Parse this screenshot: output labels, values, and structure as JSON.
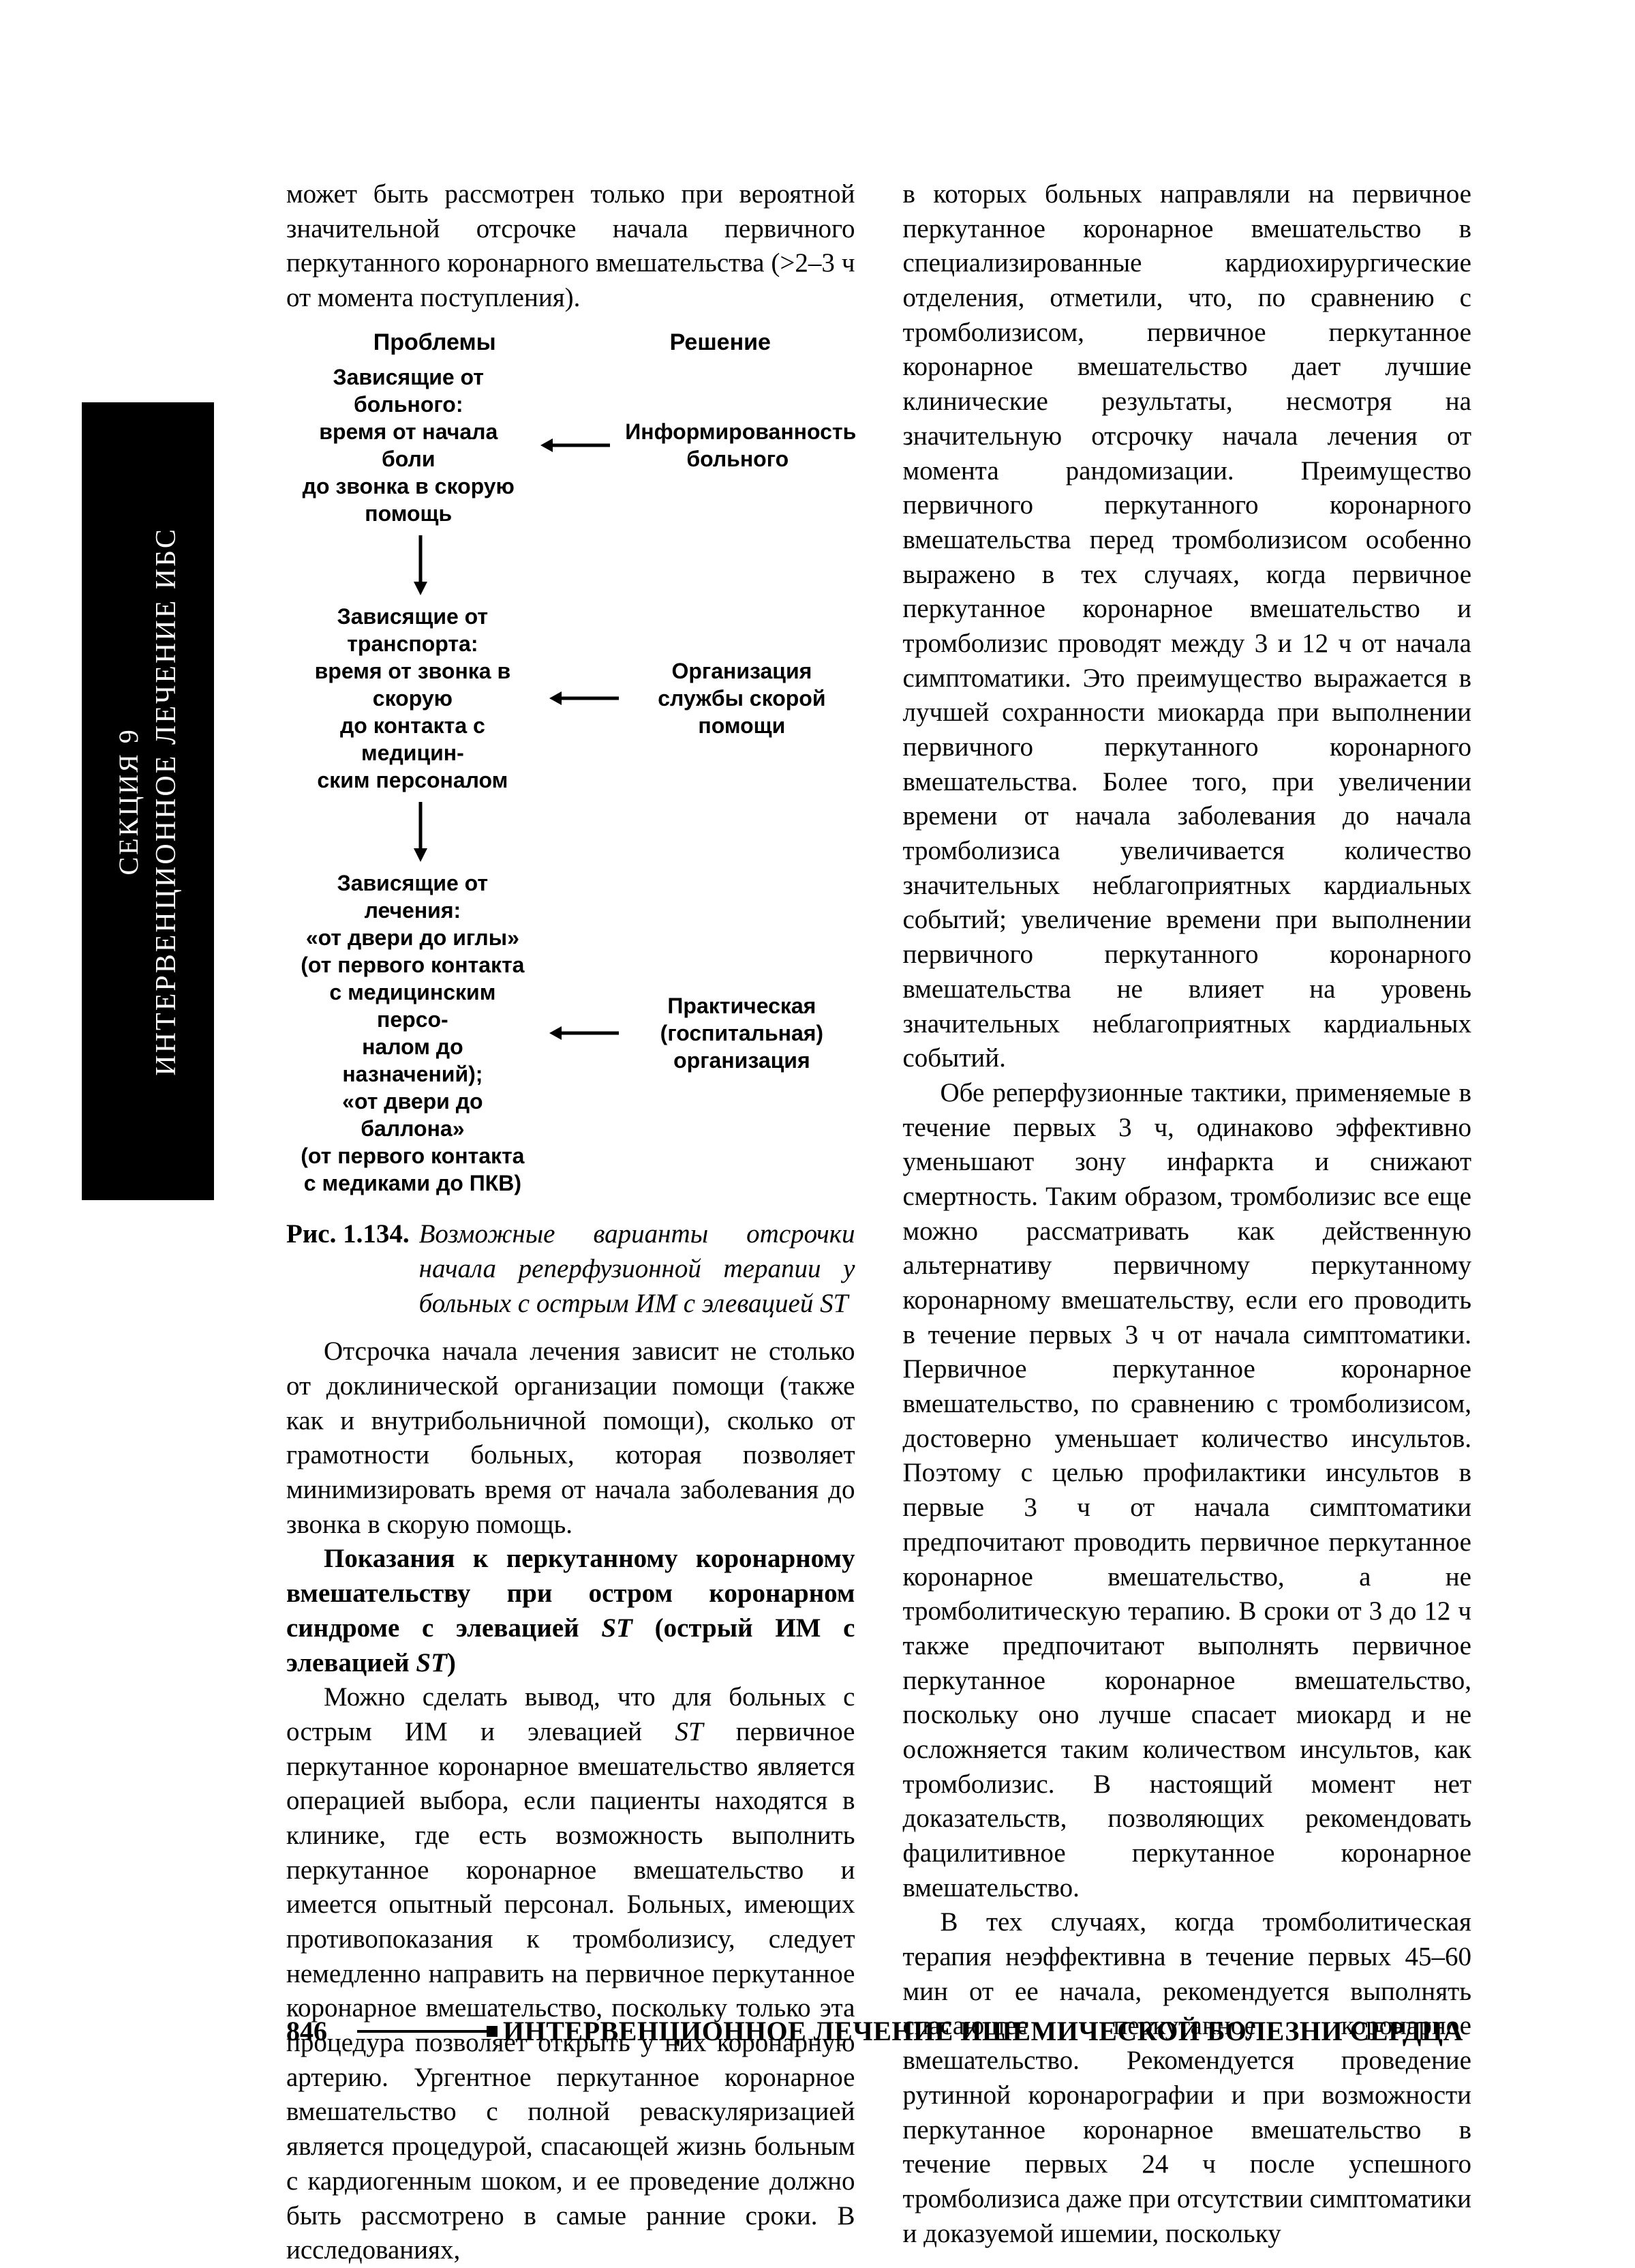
{
  "sideTab": {
    "line1": "СЕКЦИЯ 9",
    "line2": "ИНТЕРВЕНЦИОННОЕ ЛЕЧЕНИЕ ИБС",
    "bg": "#000000",
    "fg": "#ffffff"
  },
  "colors": {
    "pageBg": "#ffffff",
    "text": "#000000",
    "arrow": "#000000"
  },
  "body": {
    "leadNoIndent": "может быть рассмотрен только при вероятной значительной отсрочке начала первичного перкутанного коронарного вмешательства (>2–3 ч от момента поступления).",
    "afterFigP1": "Отсрочка начала лечения зависит не столько от доклинической организации помощи (также как и внутрибольничной помощи), сколько от грамотности больных, которая позволяет минимизировать время от начала заболевания до звонка в скорую помощь.",
    "subheadLine1": "Показания к перкутанному коронарному вмешательству при остром коронарном синдроме с элевацией ",
    "subheadSTitalic1": "ST",
    "subheadMid": " (острый ИМ с элевацией ",
    "subheadSTitalic2": "ST",
    "subheadEnd": ")",
    "leftP3a": "Можно сделать вывод, что для больных с острым ИМ и элевацией ",
    "leftP3_ST": "ST",
    "leftP3b": " первичное перкутанное коронарное вмешательство является операцией выбора, если пациенты находятся в клинике, где есть возможность выполнить перкутанное коронарное вмешательство и имеется опытный персонал. Больных, имеющих противопоказания к тромболизису, следует немедленно направить на первичное перкутанное коронарное вмешательство, поскольку только эта процедура позволяет открыть у них коронарную артерию. Ургентное перкутанное коронарное вмешательство с полной реваскуляризацией является процедурой, спасающей жизнь больным с кардиогенным шоком, и ее проведение должно быть рассмотрено в самые ранние сроки. В исследованиях,",
    "rightP1": "в которых больных направляли на первичное перкутанное коронарное вмешательство в специализированные кардиохирургические отделения, отметили, что, по сравнению с тромболизисом, первичное перкутанное коронарное вмешательство дает лучшие клинические результаты, несмотря на значительную отсрочку начала лечения от момента рандомизации. Преимущество первичного перкутанного коронарного вмешательства перед тромболизисом особенно выражено в тех случаях, когда первичное перкутанное коронарное вмешательство и тромболизис проводят между 3 и 12 ч от начала симптоматики. Это преимущество выражается в лучшей сохранности миокарда при выполнении первичного перкутанного коронарного вмешательства. Более того, при увеличении времени от начала заболевания до начала тромболизиса увеличивается количество значительных неблагоприятных кардиальных событий; увеличение времени при выполнении первичного перкутанного коронарного вмешательства не влияет на уровень значительных неблагоприятных кардиальных событий.",
    "rightP2": "Обе реперфузионные тактики, применяемые в течение первых 3 ч, одинаково эффективно уменьшают зону инфаркта и снижают смертность. Таким образом, тромболизис все еще можно рассматривать как действенную альтернативу первичному перкутанному коронарному вмешательству, если его проводить в течение первых 3 ч от начала симптоматики. Первичное перкутанное коронарное вмешательство, по сравнению с тромболизисом, достоверно уменьшает количество инсультов. Поэтому с целью профилактики инсультов в первые 3 ч от начала симптоматики предпочитают проводить первичное перкутанное коронарное вмешательство, а не тромболитическую терапию. В сроки от 3 до 12 ч также предпочитают выполнять первичное перкутанное коронарное вмешательство, поскольку оно лучше спасает миокард и не осложняется таким количеством инсультов, как тромболизис. В настоящий момент нет доказательств, позволяющих рекомендовать фацилитивное перкутанное коронарное вмешательство.",
    "rightP3": "В тех случаях, когда тромболитическая терапия неэффективна в течение первых 45–60 мин от ее начала, рекомендуется выполнять спасающее перкутанное коронарное вмешательство. Рекомендуется проведение рутинной коронарографии и при возможности перкутанное коронарное вмешательство в течение первых 24 ч после успешного тромболизиса даже при отсутствии симптоматики и доказуемой ишемии, поскольку"
  },
  "diagram": {
    "header": {
      "left": "Проблемы",
      "right": "Решение"
    },
    "rows": [
      {
        "left": "Зависящие от больного:\nвремя от начала боли\nдо звонка в скорую\nпомощь",
        "right": "Информированность\nбольного"
      },
      {
        "left": "Зависящие от транспорта:\nвремя от звонка в скорую\nдо контакта с медицин-\nским персоналом",
        "right": "Организация\nслужбы скорой помощи"
      },
      {
        "left": "Зависящие от лечения:\n«от двери до иглы»\n(от первого контакта\nс медицинским персо-\nналом до назначений);\n«от двери до баллона»\n(от первого контакта\nс медиками до ПКВ)",
        "right": "Практическая\n(госпитальная)\nорганизация"
      }
    ],
    "arrowColor": "#000000",
    "arrowStrokeWidth": 5
  },
  "figcap": {
    "label": "Рис. 1.134.",
    "text": "Возможные варианты отсрочки начала реперфузионной терапии у больных с острым ИМ с элевацией ST"
  },
  "footer": {
    "page": "846",
    "title": "ИНТЕРВЕНЦИОННОЕ ЛЕЧЕНИЕ ИШЕМИЧЕСКОЙ БОЛЕЗНИ СЕРДЦА"
  }
}
